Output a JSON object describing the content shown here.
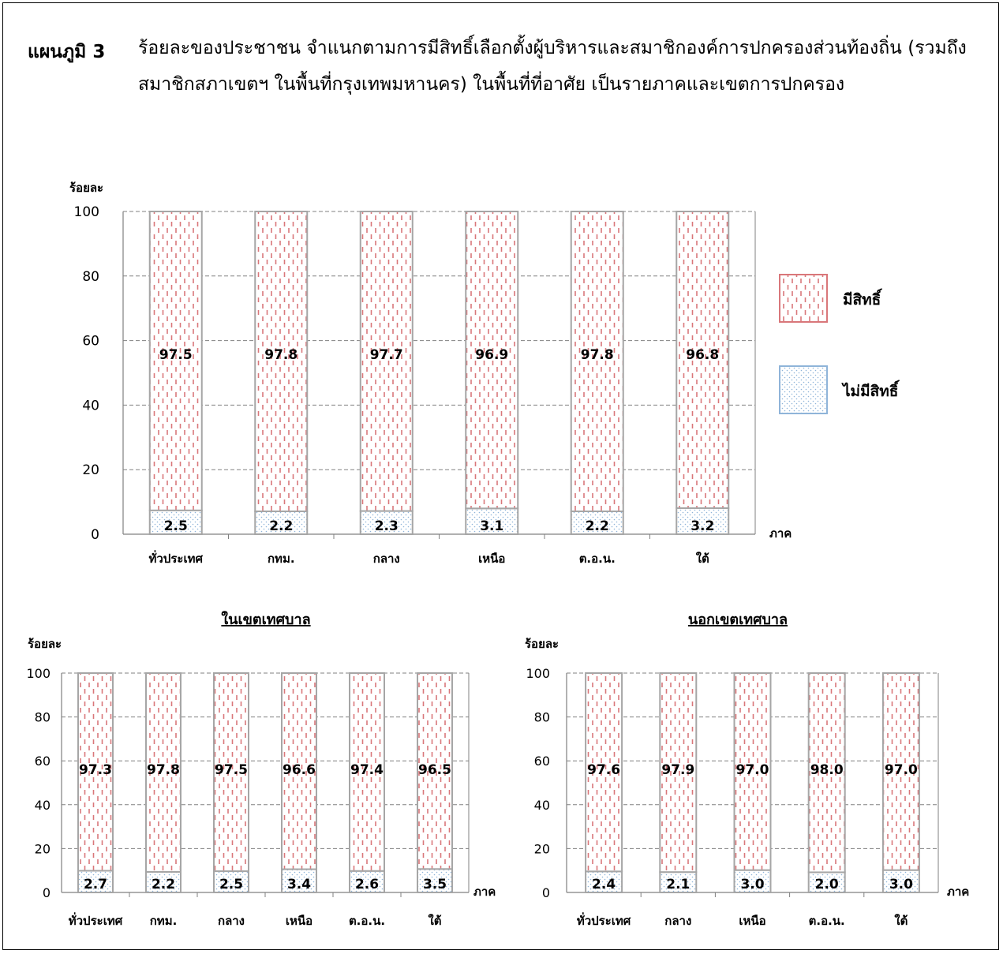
{
  "figure": {
    "label": "แผนภูมิ 3",
    "caption": "ร้อยละของประชาชน  จำแนกตามการมีสิทธิ์เลือกตั้งผู้บริหารและสมาชิกองค์การปกครองส่วนท้องถิ่น (รวมถึงสมาชิกสภาเขตฯ ในพื้นที่กรุงเทพมหานคร) ในพื้นที่ที่อาศัย    เป็นรายภาคและเขตการปกครอง"
  },
  "legend": {
    "placement": "right",
    "items": [
      {
        "label": "มีสิทธิ์",
        "color": "#d9777a"
      },
      {
        "label": "ไม่มีสิทธิ์",
        "color": "#8fb4d9"
      }
    ]
  },
  "colors": {
    "has_right": "#d9777a",
    "no_right": "#8fb4d9",
    "bar_border": "#a6a6a6",
    "grid": "#808080"
  },
  "chart_data": [
    {
      "type": "bar",
      "stacked": true,
      "title": "",
      "ylabel": "ร้อยละ",
      "xlabel": "ภาค",
      "ylim": [
        0,
        100
      ],
      "yticks": [
        0,
        20,
        40,
        60,
        80,
        100
      ],
      "grid": true,
      "categories": [
        "ทั่วประเทศ",
        "กทม.",
        "กลาง",
        "เหนือ",
        "ต.อ.น.",
        "ใต้"
      ],
      "series": [
        {
          "name": "ไม่มีสิทธิ์",
          "values": [
            2.5,
            2.2,
            2.3,
            3.1,
            2.2,
            3.2
          ],
          "labels": [
            "2.5",
            "2.2",
            "2.3",
            "3.1",
            "2.2",
            "3.2"
          ]
        },
        {
          "name": "มีสิทธิ์",
          "values": [
            97.5,
            97.8,
            97.7,
            96.9,
            97.8,
            96.8
          ],
          "labels": [
            "97.5",
            "97.8",
            "97.7",
            "96.9",
            "97.8",
            "96.8"
          ]
        }
      ]
    },
    {
      "type": "bar",
      "stacked": true,
      "title": "ในเขตเทศบาล",
      "ylabel": "ร้อยละ",
      "xlabel": "ภาค",
      "ylim": [
        0,
        100
      ],
      "yticks": [
        0,
        20,
        40,
        60,
        80,
        100
      ],
      "grid": true,
      "categories": [
        "ทั่วประเทศ",
        "กทม.",
        "กลาง",
        "เหนือ",
        "ต.อ.น.",
        "ใต้"
      ],
      "series": [
        {
          "name": "ไม่มีสิทธิ์",
          "values": [
            2.7,
            2.2,
            2.5,
            3.4,
            2.6,
            3.5
          ],
          "labels": [
            "2.7",
            "2.2",
            "2.5",
            "3.4",
            "2.6",
            "3.5"
          ]
        },
        {
          "name": "มีสิทธิ์",
          "values": [
            97.3,
            97.8,
            97.5,
            96.6,
            97.4,
            96.5
          ],
          "labels": [
            "97.3",
            "97.8",
            "97.5",
            "96.6",
            "97.4",
            "96.5"
          ]
        }
      ]
    },
    {
      "type": "bar",
      "stacked": true,
      "title": "นอกเขตเทศบาล",
      "ylabel": "ร้อยละ",
      "xlabel": "ภาค",
      "ylim": [
        0,
        100
      ],
      "yticks": [
        0,
        20,
        40,
        60,
        80,
        100
      ],
      "grid": true,
      "categories": [
        "ทั่วประเทศ",
        "กลาง",
        "เหนือ",
        "ต.อ.น.",
        "ใต้"
      ],
      "series": [
        {
          "name": "ไม่มีสิทธิ์",
          "values": [
            2.4,
            2.1,
            3.0,
            2.0,
            3.0
          ],
          "labels": [
            "2.4",
            "2.1",
            "3.0",
            "2.0",
            "3.0"
          ]
        },
        {
          "name": "มีสิทธิ์",
          "values": [
            97.6,
            97.9,
            97.0,
            98.0,
            97.0
          ],
          "labels": [
            "97.6",
            "97.9",
            "97.0",
            "98.0",
            "97.0"
          ]
        }
      ]
    }
  ]
}
